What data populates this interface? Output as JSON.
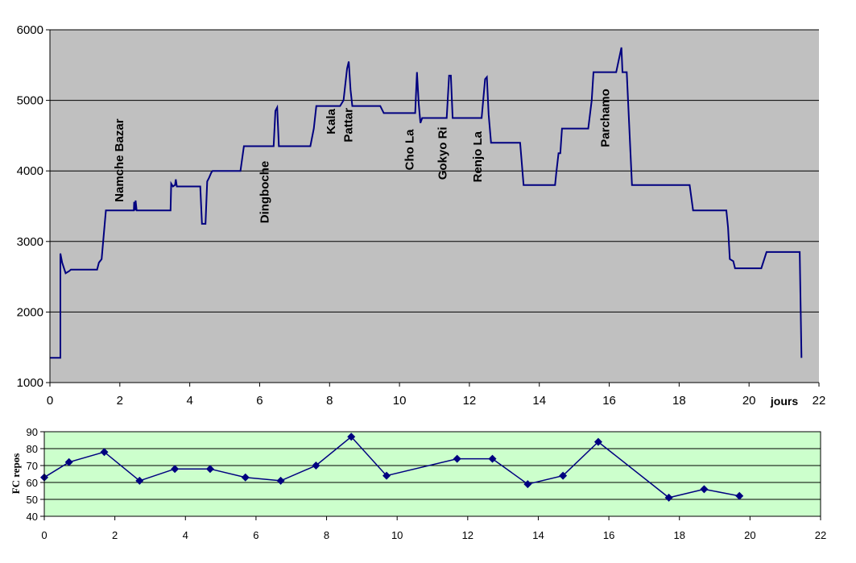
{
  "chart_data": [
    {
      "type": "line",
      "title": "",
      "xlabel": "jours",
      "ylabel": "",
      "xlim": [
        0,
        22
      ],
      "ylim": [
        1000,
        6000
      ],
      "x_ticks": [
        0,
        2,
        4,
        6,
        8,
        10,
        12,
        14,
        16,
        18,
        20,
        22
      ],
      "y_ticks": [
        1000,
        2000,
        3000,
        4000,
        5000,
        6000
      ],
      "grid": "horizontal",
      "background": "#c0c0c0",
      "line_color": "#000080",
      "annotations": [
        {
          "text": "Namche Bazar",
          "x": 2.1,
          "y": 4150
        },
        {
          "text": "Dingboche",
          "x": 6.25,
          "y": 3700
        },
        {
          "text": "Kala",
          "x": 8.15,
          "y": 4700
        },
        {
          "text": "Pattar",
          "x": 8.65,
          "y": 4650
        },
        {
          "text": "Cho La",
          "x": 10.4,
          "y": 4300
        },
        {
          "text": "Gokyo Ri",
          "x": 11.35,
          "y": 4250
        },
        {
          "text": "Renjo La",
          "x": 12.35,
          "y": 4200
        },
        {
          "text": "Parchamo",
          "x": 16.0,
          "y": 4750
        }
      ],
      "series": [
        {
          "name": "",
          "x": [
            0,
            0.3,
            0.3,
            0.35,
            0.45,
            0.55,
            0.6,
            1.35,
            1.4,
            1.48,
            1.6,
            1.62,
            2.4,
            2.41,
            2.43,
            2.45,
            2.48,
            3.45,
            3.47,
            3.52,
            3.58,
            3.6,
            3.63,
            3.66,
            4.3,
            4.35,
            4.45,
            4.5,
            4.55,
            4.62,
            4.65,
            5.45,
            5.55,
            6.4,
            6.45,
            6.5,
            6.55,
            7.45,
            7.55,
            7.62,
            8.3,
            8.4,
            8.5,
            8.55,
            8.6,
            8.65,
            9.45,
            9.55,
            10.45,
            10.5,
            10.55,
            10.6,
            10.65,
            11.35,
            11.42,
            11.47,
            11.52,
            12.35,
            12.45,
            12.5,
            12.55,
            12.62,
            13.45,
            13.55,
            14.45,
            14.48,
            14.55,
            14.6,
            14.65,
            15.4,
            15.5,
            15.55,
            16.2,
            16.35,
            16.38,
            16.5,
            16.65,
            18.3,
            18.4,
            19.35,
            19.4,
            19.45,
            19.55,
            19.6,
            20.35,
            20.5,
            20.55,
            21.4,
            21.45,
            21.5
          ],
          "y": [
            1350,
            1350,
            2830,
            2700,
            2550,
            2580,
            2600,
            2600,
            2700,
            2750,
            3440,
            3440,
            3440,
            3560,
            3440,
            3580,
            3440,
            3440,
            3820,
            3780,
            3800,
            3880,
            3780,
            3780,
            3780,
            3250,
            3250,
            3850,
            3900,
            3980,
            4000,
            4000,
            4350,
            4350,
            4850,
            4900,
            4350,
            4350,
            4600,
            4920,
            4920,
            5000,
            5450,
            5550,
            5150,
            4920,
            4920,
            4820,
            4820,
            5400,
            4950,
            4680,
            4750,
            4750,
            5350,
            5350,
            4750,
            4750,
            5300,
            5330,
            4800,
            4400,
            4400,
            3800,
            3800,
            3950,
            4250,
            4250,
            4600,
            4600,
            5000,
            5400,
            5400,
            5750,
            5400,
            5400,
            3800,
            3800,
            3440,
            3440,
            3200,
            2750,
            2720,
            2620,
            2620,
            2850,
            2850,
            2850,
            2850,
            1350
          ]
        }
      ]
    },
    {
      "type": "line",
      "title": "",
      "xlabel": "",
      "ylabel": "FC repos",
      "xlim": [
        0,
        22
      ],
      "ylim": [
        40,
        90
      ],
      "x_ticks": [
        0,
        2,
        4,
        6,
        8,
        10,
        12,
        14,
        16,
        18,
        20,
        22
      ],
      "y_ticks": [
        40,
        50,
        60,
        70,
        80,
        90
      ],
      "grid": "horizontal",
      "background": "#ccffcc",
      "line_color": "#000080",
      "series": [
        {
          "name": "",
          "x": [
            0,
            0.7,
            1.7,
            2.7,
            3.7,
            4.7,
            5.7,
            6.7,
            7.7,
            8.7,
            9.7,
            11.7,
            12.7,
            13.7,
            14.7,
            15.7,
            17.7,
            18.7,
            19.7
          ],
          "y": [
            63,
            72,
            78,
            61,
            68,
            68,
            63,
            61,
            70,
            87,
            64,
            74,
            74,
            59,
            64,
            84,
            51,
            56,
            52
          ]
        }
      ]
    }
  ]
}
